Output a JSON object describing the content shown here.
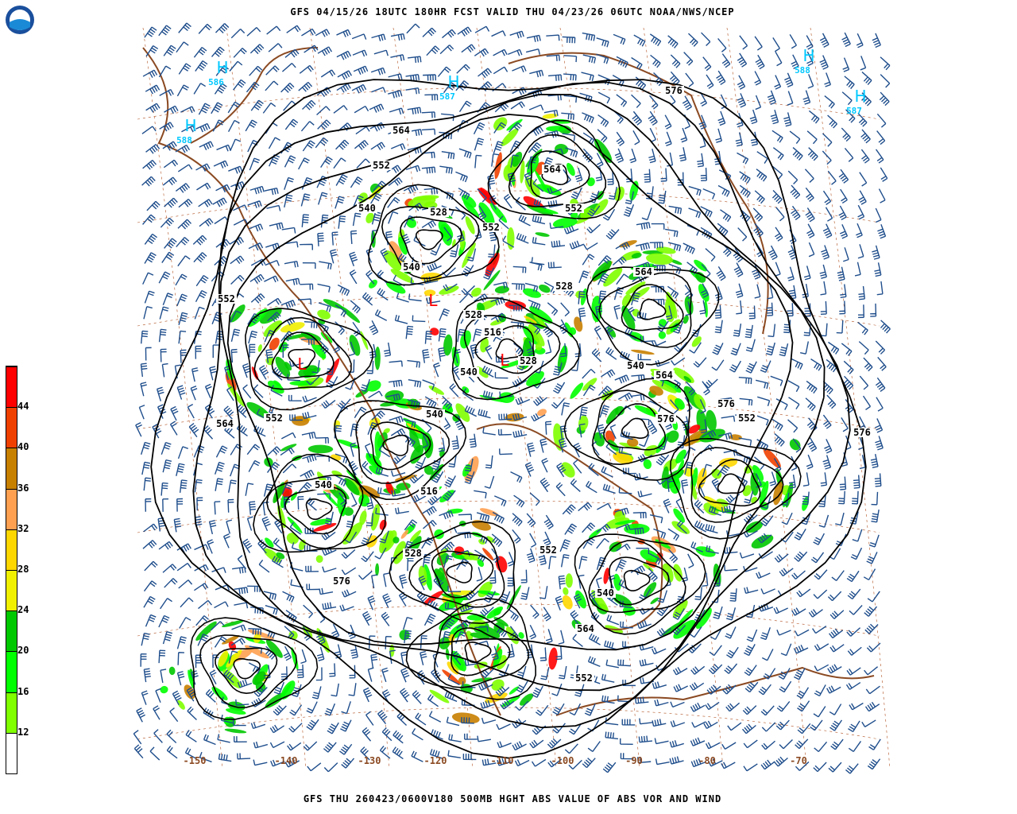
{
  "header": {
    "title": "GFS 04/15/26 18UTC 180HR FCST VALID THU 04/23/26 06UTC NOAA/NWS/NCEP"
  },
  "footer": {
    "caption": "GFS THU 260423/0600V180 500MB HGHT ABS VALUE OF ABS VOR AND WIND"
  },
  "logo": {
    "text": "NOAA"
  },
  "colorbar": {
    "labels": [
      "12",
      "16",
      "20",
      "24",
      "28",
      "32",
      "36",
      "40",
      "44"
    ],
    "colors": [
      "#ffffff",
      "#80ff00",
      "#00ff00",
      "#00c800",
      "#f0f000",
      "#ffd700",
      "#ffa050",
      "#c88000",
      "#f04000",
      "#ff0000"
    ]
  },
  "map": {
    "longitude_labels": [
      "-150",
      "-140",
      "-130",
      "-120",
      "-110",
      "-100",
      "-90",
      "-80",
      "-70"
    ],
    "contour_labels": [
      "576",
      "564",
      "552",
      "540",
      "528",
      "552",
      "540",
      "528",
      "516",
      "528",
      "540",
      "564",
      "576",
      "552",
      "540",
      "528",
      "516",
      "552",
      "540",
      "564",
      "576",
      "552",
      "564",
      "576",
      "552",
      "540",
      "528",
      "564",
      "576",
      "552",
      "540",
      "552",
      "564"
    ],
    "high_labels": [
      "586",
      "588",
      "587",
      "588",
      "587"
    ],
    "colors": {
      "contour": "#000000",
      "barb": "#1f4e8c",
      "coast": "#8b4a22",
      "high": "#00c8ff",
      "low": "#ff0000",
      "grid": "#b05020"
    }
  }
}
